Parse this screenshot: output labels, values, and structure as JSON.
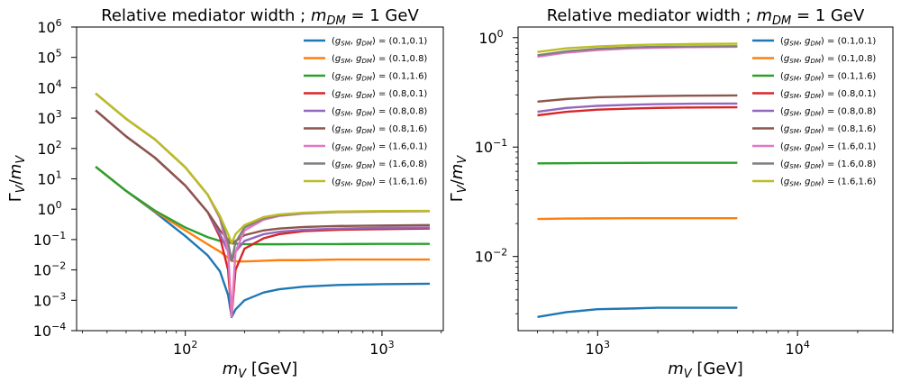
{
  "chart_data": [
    {
      "type": "line",
      "title": "Relative mediator width ; m_DM = 1 GeV",
      "xlabel": "m_V [GeV]",
      "ylabel": "Γ_V / m_V",
      "xscale": "log",
      "yscale": "log",
      "xlim": [
        28,
        2050
      ],
      "ylim": [
        0.0001,
        1000000
      ],
      "xticks": [
        "10^2",
        "10^3"
      ],
      "yticks": [
        "10^-4",
        "10^-3",
        "10^-2",
        "10^-1",
        "10^0",
        "10^1",
        "10^2",
        "10^3",
        "10^4",
        "10^5",
        "10^6"
      ],
      "legend": "top-right",
      "x": [
        35,
        50,
        70,
        100,
        130,
        150,
        165,
        172,
        180,
        200,
        250,
        300,
        400,
        600,
        1000,
        1750
      ],
      "series": [
        {
          "name": "(g_SM,g_DM) = (0.1,0.1)",
          "color": "#1f77b4",
          "values": [
            25,
            4.0,
            0.8,
            0.13,
            0.03,
            0.009,
            0.0015,
            0.00028,
            0.0005,
            0.001,
            0.0018,
            0.0023,
            0.0028,
            0.0032,
            0.0034,
            0.0035
          ]
        },
        {
          "name": "(g_SM,g_DM) = (0.1,0.8)",
          "color": "#ff7f0e",
          "values": [
            25,
            4.0,
            0.85,
            0.2,
            0.07,
            0.04,
            0.025,
            0.02,
            0.019,
            0.019,
            0.02,
            0.021,
            0.021,
            0.022,
            0.022,
            0.022
          ]
        },
        {
          "name": "(g_SM,g_DM) = (0.1,1.6)",
          "color": "#2ca02c",
          "values": [
            25,
            4.0,
            0.9,
            0.25,
            0.12,
            0.09,
            0.08,
            0.075,
            0.073,
            0.071,
            0.07,
            0.07,
            0.071,
            0.071,
            0.072,
            0.072
          ]
        },
        {
          "name": "(g_SM,g_DM) = (0.8,0.1)",
          "color": "#d62728",
          "values": [
            1800,
            250,
            50,
            6.0,
            0.8,
            0.12,
            0.01,
            0.0003,
            0.01,
            0.05,
            0.11,
            0.15,
            0.19,
            0.21,
            0.22,
            0.23
          ]
        },
        {
          "name": "(g_SM,g_DM) = (0.8,0.8)",
          "color": "#9467bd",
          "values": [
            1800,
            250,
            50,
            6.0,
            0.8,
            0.15,
            0.04,
            0.02,
            0.04,
            0.09,
            0.15,
            0.18,
            0.21,
            0.23,
            0.245,
            0.25
          ]
        },
        {
          "name": "(g_SM,g_DM) = (0.8,1.6)",
          "color": "#8c564b",
          "values": [
            1800,
            250,
            50,
            6.0,
            0.8,
            0.2,
            0.1,
            0.075,
            0.09,
            0.14,
            0.2,
            0.23,
            0.26,
            0.28,
            0.29,
            0.3
          ]
        },
        {
          "name": "(g_SM,g_DM) = (1.6,0.1)",
          "color": "#e377c2",
          "values": [
            6500,
            950,
            200,
            24,
            3.0,
            0.5,
            0.04,
            0.0003,
            0.04,
            0.2,
            0.45,
            0.6,
            0.72,
            0.8,
            0.84,
            0.86
          ]
        },
        {
          "name": "(g_SM,g_DM) = (1.6,0.8)",
          "color": "#7f7f7f",
          "values": [
            6500,
            950,
            200,
            24,
            3.0,
            0.55,
            0.08,
            0.02,
            0.08,
            0.25,
            0.5,
            0.63,
            0.74,
            0.82,
            0.85,
            0.87
          ]
        },
        {
          "name": "(g_SM,g_DM) = (1.6,1.6)",
          "color": "#bcbd22",
          "values": [
            6500,
            950,
            200,
            24,
            3.0,
            0.6,
            0.15,
            0.075,
            0.15,
            0.3,
            0.55,
            0.67,
            0.77,
            0.84,
            0.87,
            0.88
          ]
        }
      ]
    },
    {
      "type": "line",
      "title": "Relative mediator width ; m_DM = 1 GeV",
      "xlabel": "m_V [GeV]",
      "ylabel": "Γ_V / m_V",
      "xscale": "log",
      "yscale": "log",
      "xlim": [
        400,
        30000
      ],
      "ylim": [
        0.0021,
        1.25
      ],
      "xticks": [
        "10^3",
        "10^4"
      ],
      "yticks": [
        "10^-2",
        "10^-1",
        "10^0"
      ],
      "legend": "top-right",
      "x": [
        500,
        700,
        1000,
        1500,
        2000,
        3000,
        5000
      ],
      "series": [
        {
          "name": "(g_SM,g_DM) = (0.1,0.1)",
          "color": "#1f77b4",
          "values": [
            0.0028,
            0.0031,
            0.0033,
            0.00335,
            0.0034,
            0.0034,
            0.0034
          ]
        },
        {
          "name": "(g_SM,g_DM) = (0.1,0.8)",
          "color": "#ff7f0e",
          "values": [
            0.022,
            0.0222,
            0.0223,
            0.0224,
            0.0224,
            0.0224,
            0.0224
          ]
        },
        {
          "name": "(g_SM,g_DM) = (0.1,1.6)",
          "color": "#2ca02c",
          "values": [
            0.071,
            0.0712,
            0.0715,
            0.0717,
            0.0718,
            0.0718,
            0.0718
          ]
        },
        {
          "name": "(g_SM,g_DM) = (0.8,0.1)",
          "color": "#d62728",
          "values": [
            0.195,
            0.21,
            0.22,
            0.225,
            0.228,
            0.23,
            0.231
          ]
        },
        {
          "name": "(g_SM,g_DM) = (0.8,0.8)",
          "color": "#9467bd",
          "values": [
            0.21,
            0.228,
            0.238,
            0.244,
            0.247,
            0.249,
            0.25
          ]
        },
        {
          "name": "(g_SM,g_DM) = (0.8,1.6)",
          "color": "#8c564b",
          "values": [
            0.26,
            0.275,
            0.285,
            0.29,
            0.293,
            0.295,
            0.296
          ]
        },
        {
          "name": "(g_SM,g_DM) = (1.6,0.1)",
          "color": "#e377c2",
          "values": [
            0.67,
            0.73,
            0.77,
            0.8,
            0.81,
            0.82,
            0.825
          ]
        },
        {
          "name": "(g_SM,g_DM) = (1.6,0.8)",
          "color": "#7f7f7f",
          "values": [
            0.69,
            0.75,
            0.79,
            0.815,
            0.825,
            0.83,
            0.835
          ]
        },
        {
          "name": "(g_SM,g_DM) = (1.6,1.6)",
          "color": "#bcbd22",
          "values": [
            0.74,
            0.8,
            0.83,
            0.855,
            0.865,
            0.875,
            0.88
          ]
        }
      ]
    }
  ]
}
